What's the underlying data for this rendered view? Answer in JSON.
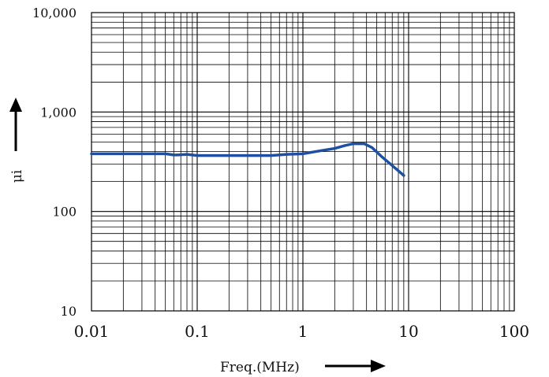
{
  "chart_data": {
    "type": "line",
    "title": "",
    "xlabel": "Freq.(MHz)",
    "ylabel": "μi",
    "x_scale": "log",
    "y_scale": "log",
    "xlim": [
      0.01,
      100
    ],
    "ylim": [
      10,
      10000
    ],
    "x_tick_labels": [
      "0.01",
      "0.1",
      "1",
      "10",
      "100"
    ],
    "y_tick_labels": [
      "10",
      "100",
      "1,000",
      "10,000"
    ],
    "grid": true,
    "colors": {
      "line": "#1f4fa0",
      "grid": "#000000"
    },
    "series": [
      {
        "x": [
          0.01,
          0.02,
          0.03,
          0.05,
          0.06,
          0.065,
          0.08,
          0.1,
          0.2,
          0.3,
          0.5,
          0.7,
          1.0,
          1.5,
          2.0,
          2.5,
          3.0,
          3.8,
          4.5,
          5.5,
          7.0,
          9.0
        ],
        "y": [
          380,
          380,
          380,
          380,
          370,
          370,
          375,
          365,
          365,
          365,
          365,
          375,
          380,
          410,
          430,
          460,
          480,
          480,
          440,
          360,
          290,
          230
        ]
      }
    ]
  }
}
